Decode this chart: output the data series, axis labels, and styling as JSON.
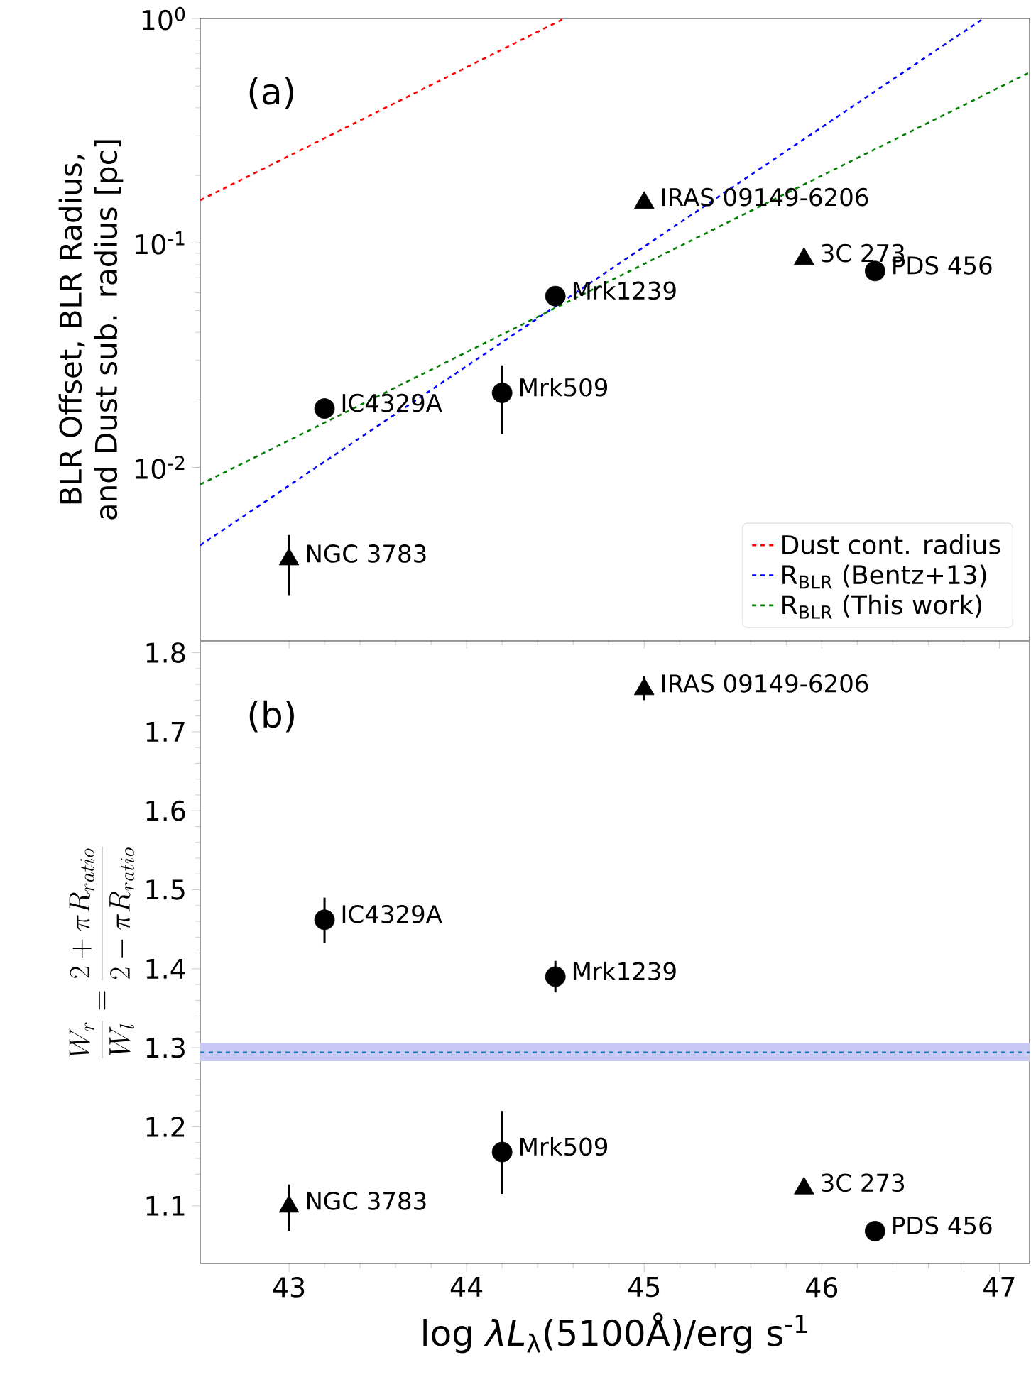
{
  "chart_data": [
    {
      "type": "scatter",
      "title": "(a)",
      "ylabel": "BLR Offset, BLR Radius, and Dust sub. radius [pc]",
      "log": "y",
      "xlim": [
        42.5,
        47.17
      ],
      "xticks": [
        43,
        44,
        45,
        46,
        47
      ],
      "ylim": [
        0.0017,
        1
      ],
      "yticks": [
        {
          "value": 0.01,
          "label": "10$^{-2}$"
        },
        {
          "value": 0.1,
          "label": "10$^{-1}$"
        },
        {
          "value": 1,
          "label": "10$^{0}$"
        }
      ],
      "tick_labels": "y",
      "legend": "bottom right",
      "series": [
        {
          "color": "#000000",
          "marker": "circle",
          "x": [
            43.2,
            44.2,
            44.5,
            46.3
          ],
          "values": [
            0.0183,
            0.0215,
            0.058,
            0.075
          ],
          "errors": [
            null,
            [
              0.0141,
              0.0285
            ],
            null,
            null
          ]
        },
        {
          "color": "#000000",
          "marker": "triangle",
          "x": [
            43,
            45,
            45.9
          ],
          "values": [
            0.0039,
            0.151,
            0.085
          ],
          "errors": [
            [
              0.0027,
              0.005
            ],
            null,
            null
          ]
        },
        {
          "type": "line",
          "name": "Dust cont. radius",
          "color": "#ff0000",
          "line_style": "dashed",
          "x": [
            42.5,
            44.55
          ],
          "values": [
            0.155,
            1
          ]
        },
        {
          "type": "line",
          "name": "R$_{BLR}$ (Bentz+13)",
          "color": "#0000ff",
          "line_style": "dashed",
          "x": [
            42.5,
            46.91
          ],
          "values": [
            0.0045,
            1
          ]
        },
        {
          "type": "line",
          "name": "R$_{BLR}$ (This work)",
          "color": "#008000",
          "line_style": "dashed",
          "x": [
            42.5,
            47.17
          ],
          "values": [
            0.0084,
            0.575
          ]
        }
      ],
      "annotations": [
        {
          "text": "NGC 3783",
          "x": 43,
          "y": 0.0039
        },
        {
          "text": "IC4329A",
          "x": 43.2,
          "y": 0.0183
        },
        {
          "text": "Mrk509",
          "x": 44.2,
          "y": 0.0215
        },
        {
          "text": "Mrk1239",
          "x": 44.5,
          "y": 0.058
        },
        {
          "text": "IRAS 09149-6206",
          "x": 45,
          "y": 0.151
        },
        {
          "text": "3C 273",
          "x": 45.9,
          "y": 0.085
        },
        {
          "text": "PDS 456",
          "x": 46.3,
          "y": 0.075
        }
      ]
    },
    {
      "type": "scatter",
      "title": "(b)",
      "xlabel": "log *λL*$_{λ}$(5100Å)/erg s$^{-1}$",
      "ylabel": "\\frac{W_r}{W_l} = \\frac{2+\\pi R_{ratio}}{2-\\pi R_{ratio}}",
      "xlim": [
        42.5,
        47.17
      ],
      "xticks": [
        43,
        44,
        45,
        46,
        47
      ],
      "ylim": [
        1.027,
        1.814
      ],
      "yticks": [
        1.1,
        1.2,
        1.3,
        1.4,
        1.5,
        1.6,
        1.7,
        1.8
      ],
      "series": [
        {
          "color": "#000000",
          "marker": "circle",
          "x": [
            43.2,
            44.2,
            44.5,
            46.3
          ],
          "values": [
            1.462,
            1.168,
            1.39,
            1.068
          ],
          "errors": [
            [
              1.433,
              1.49
            ],
            [
              1.115,
              1.22
            ],
            [
              1.37,
              1.41
            ],
            null
          ]
        },
        {
          "color": "#000000",
          "marker": "triangle",
          "x": [
            43,
            45,
            45.9
          ],
          "values": [
            1.099,
            1.754,
            1.122
          ],
          "errors": [
            [
              1.068,
              1.127
            ],
            [
              1.74,
              1.77
            ],
            null
          ]
        }
      ],
      "ref_lines": [
        {
          "axis": "y",
          "value": 1.294,
          "color": "#1f77b4",
          "line_style": "dashed"
        }
      ],
      "bands": [
        {
          "axis": "y",
          "from": 1.283,
          "to": 1.306,
          "color": "#c8c8f5"
        }
      ],
      "annotations": [
        {
          "text": "NGC 3783",
          "x": 43,
          "y": 1.099
        },
        {
          "text": "IC4329A",
          "x": 43.2,
          "y": 1.462
        },
        {
          "text": "Mrk509",
          "x": 44.2,
          "y": 1.168
        },
        {
          "text": "Mrk1239",
          "x": 44.5,
          "y": 1.39
        },
        {
          "text": "IRAS 09149-6206",
          "x": 45,
          "y": 1.754
        },
        {
          "text": "3C 273",
          "x": 45.9,
          "y": 1.122
        },
        {
          "text": "PDS 456",
          "x": 46.3,
          "y": 1.068
        }
      ]
    }
  ]
}
